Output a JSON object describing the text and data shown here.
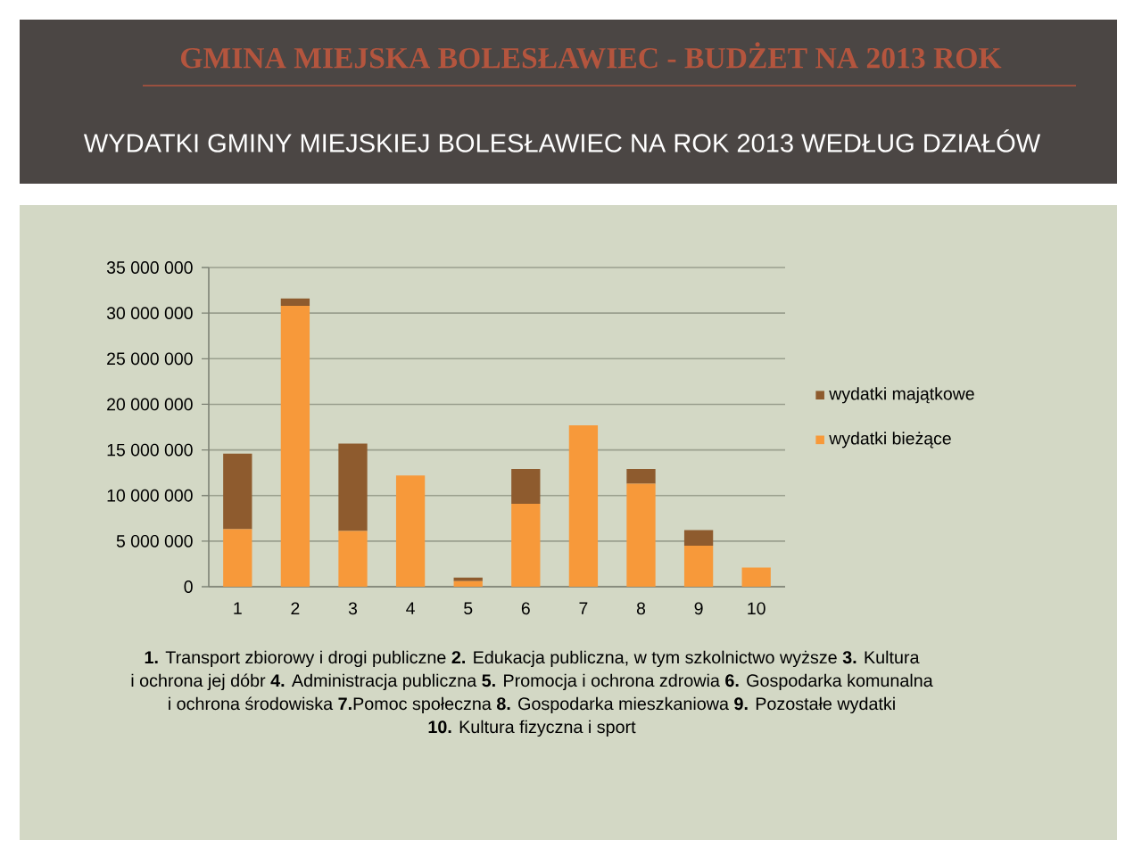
{
  "chart_data": {
    "type": "bar",
    "stacked": true,
    "title": "GMINA MIEJSKA BOLESŁAWIEC - BUDŻET NA 2013 ROK",
    "subtitle": "WYDATKI GMINY MIEJSKIEJ BOLESŁAWIEC NA ROK 2013 WEDŁUG DZIAŁÓW",
    "categories": [
      "1",
      "2",
      "3",
      "4",
      "5",
      "6",
      "7",
      "8",
      "9",
      "10"
    ],
    "series": [
      {
        "name": "wydatki bieżące",
        "color": "#f7993a",
        "values": [
          6300000,
          30800000,
          6100000,
          12200000,
          600000,
          9100000,
          17700000,
          11300000,
          4500000,
          2100000
        ]
      },
      {
        "name": "wydatki majątkowe",
        "color": "#8e5b2e",
        "values": [
          8300000,
          800000,
          9600000,
          null,
          400000,
          3800000,
          null,
          1600000,
          1700000,
          null
        ]
      }
    ],
    "ylim": [
      0,
      35000000
    ],
    "yticks": [
      0,
      {
        "value": 5000000,
        "label": "5 000 000"
      },
      {
        "value": 10000000,
        "label": "10 000 000"
      },
      {
        "value": 15000000,
        "label": "15 000 000"
      },
      {
        "value": 20000000,
        "label": "20 000 000"
      },
      {
        "value": 25000000,
        "label": "25 000 000"
      },
      {
        "value": 30000000,
        "label": "30 000 000"
      },
      {
        "value": 35000000,
        "label": "35 000 000"
      }
    ],
    "grid": "y",
    "legend": "right",
    "annotations": [
      "**1.** Transport zbiorowy i drogi publiczne **2.** Edukacja publiczna, w tym szkolnictwo wyższe **3.** Kultura",
      "i ochrona jej dóbr **4.** Administracja publiczna **5.** Promocja i ochrona zdrowia **6.** Gospodarka komunalna",
      "i ochrona środowiska  **7.**Pomoc społeczna  **8.** Gospodarka mieszkaniowa  **9.** Pozostałe wydatki",
      "**10.** Kultura fizyczna i sport"
    ]
  }
}
